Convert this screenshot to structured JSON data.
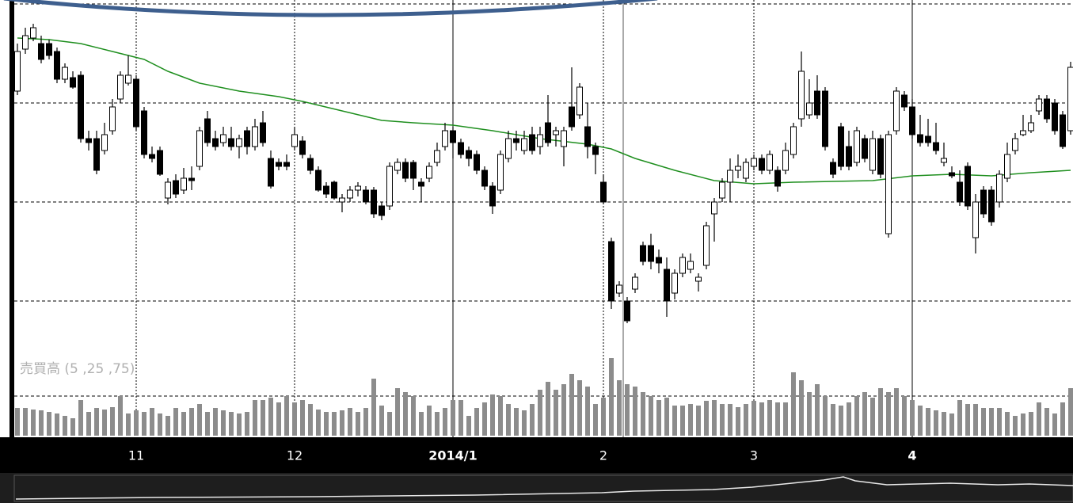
{
  "chart_data": {
    "type": "candlestick",
    "open": [
      390,
      443,
      457,
      450,
      450,
      440,
      405,
      407,
      410,
      330,
      330,
      315,
      340,
      380,
      400,
      405,
      365,
      310,
      315,
      255,
      277,
      265,
      280,
      295,
      355,
      330,
      325,
      330,
      320,
      340,
      320,
      350,
      305,
      300,
      300,
      320,
      327,
      305,
      290,
      270,
      275,
      250,
      255,
      265,
      265,
      265,
      245,
      245,
      290,
      300,
      300,
      275,
      280,
      300,
      320,
      340,
      325,
      315,
      310,
      290,
      270,
      265,
      305,
      330,
      315,
      335,
      320,
      350,
      335,
      320,
      370,
      360,
      345,
      320,
      275,
      200,
      135,
      125,
      140,
      195,
      195,
      180,
      165,
      135,
      160,
      165,
      150,
      170,
      235,
      255,
      275,
      290,
      280,
      295,
      305,
      290,
      290,
      290,
      310,
      355,
      360,
      390,
      390,
      300,
      345,
      320,
      300,
      330,
      290,
      330,
      210,
      340,
      385,
      370,
      335,
      333,
      325,
      300,
      287,
      275,
      295,
      205,
      265,
      265,
      250,
      280,
      315,
      335,
      340,
      365,
      380,
      375,
      360,
      340
    ],
    "high": [
      450,
      470,
      475,
      460,
      455,
      445,
      425,
      415,
      415,
      340,
      340,
      350,
      380,
      415,
      435,
      410,
      370,
      320,
      320,
      280,
      285,
      293,
      295,
      345,
      365,
      340,
      345,
      345,
      335,
      345,
      355,
      365,
      315,
      305,
      310,
      345,
      333,
      310,
      295,
      275,
      277,
      260,
      270,
      275,
      270,
      269,
      250,
      300,
      305,
      305,
      303,
      280,
      300,
      325,
      350,
      345,
      330,
      320,
      315,
      295,
      275,
      315,
      340,
      340,
      340,
      345,
      345,
      385,
      345,
      345,
      420,
      400,
      375,
      325,
      285,
      205,
      150,
      130,
      160,
      200,
      210,
      190,
      180,
      165,
      185,
      185,
      160,
      225,
      255,
      280,
      305,
      310,
      305,
      310,
      310,
      315,
      295,
      325,
      350,
      440,
      405,
      410,
      395,
      305,
      350,
      340,
      345,
      335,
      340,
      335,
      340,
      395,
      390,
      380,
      360,
      355,
      350,
      325,
      295,
      290,
      300,
      260,
      270,
      270,
      290,
      325,
      337,
      360,
      360,
      385,
      385,
      380,
      365,
      427
    ],
    "low": [
      385,
      437,
      453,
      425,
      430,
      400,
      400,
      393,
      325,
      315,
      285,
      310,
      335,
      375,
      397,
      340,
      305,
      300,
      283,
      247,
      255,
      260,
      265,
      290,
      320,
      315,
      320,
      315,
      305,
      310,
      315,
      320,
      267,
      290,
      290,
      315,
      305,
      285,
      263,
      255,
      253,
      237,
      250,
      257,
      247,
      230,
      227,
      240,
      285,
      275,
      265,
      250,
      275,
      295,
      315,
      305,
      305,
      295,
      285,
      265,
      235,
      260,
      300,
      315,
      310,
      310,
      310,
      320,
      320,
      295,
      340,
      355,
      305,
      285,
      247,
      115,
      130,
      97,
      135,
      170,
      165,
      160,
      105,
      127,
      155,
      160,
      137,
      165,
      200,
      250,
      250,
      280,
      275,
      290,
      285,
      285,
      263,
      285,
      305,
      345,
      355,
      355,
      315,
      280,
      290,
      290,
      295,
      300,
      285,
      280,
      205,
      335,
      365,
      330,
      320,
      320,
      310,
      295,
      280,
      245,
      240,
      185,
      230,
      220,
      243,
      275,
      310,
      333,
      337,
      360,
      350,
      335,
      317,
      335
    ],
    "close": [
      440,
      460,
      470,
      430,
      435,
      405,
      420,
      395,
      330,
      325,
      290,
      335,
      370,
      410,
      410,
      345,
      310,
      305,
      285,
      275,
      260,
      280,
      277,
      340,
      325,
      320,
      335,
      320,
      330,
      320,
      345,
      325,
      270,
      295,
      295,
      335,
      310,
      290,
      265,
      260,
      255,
      255,
      265,
      270,
      250,
      235,
      233,
      295,
      300,
      280,
      280,
      270,
      295,
      315,
      340,
      325,
      310,
      305,
      290,
      270,
      245,
      310,
      330,
      325,
      330,
      315,
      335,
      325,
      340,
      340,
      345,
      395,
      320,
      310,
      250,
      125,
      145,
      100,
      155,
      175,
      175,
      173,
      125,
      160,
      180,
      175,
      155,
      220,
      250,
      275,
      290,
      295,
      300,
      305,
      290,
      310,
      270,
      315,
      345,
      415,
      375,
      360,
      320,
      285,
      295,
      295,
      340,
      305,
      330,
      285,
      335,
      390,
      370,
      335,
      325,
      325,
      315,
      305,
      283,
      250,
      245,
      250,
      235,
      225,
      285,
      310,
      330,
      340,
      350,
      380,
      355,
      340,
      320,
      420
    ],
    "up_color": "#ffffff",
    "down_color": "#000000",
    "xlim": [
      -0.4,
      133.3
    ],
    "xticks": [
      {
        "value": 15,
        "label": "11"
      },
      {
        "value": 35,
        "label": "12"
      },
      {
        "value": 55,
        "label": "2014/1",
        "major": true
      },
      {
        "value": 74,
        "label": "2"
      },
      {
        "value": 93,
        "label": "3"
      },
      {
        "value": 113,
        "label": "4",
        "major": true
      }
    ],
    "ylim": [
      65,
      505
    ],
    "yticks": [
      125,
      250,
      375,
      500
    ],
    "grid": true,
    "moving_average": {
      "color": "#1f8f1f",
      "x": [
        0,
        4,
        8,
        12,
        16,
        19,
        23,
        28,
        33,
        36,
        41,
        46,
        50,
        55,
        60,
        66,
        72,
        75,
        78,
        83,
        88,
        93,
        98,
        108,
        113,
        118,
        123,
        128,
        133
      ],
      "values": [
        457,
        455,
        450,
        440,
        430,
        415,
        400,
        390,
        383,
        377,
        365,
        353,
        350,
        347,
        340,
        330,
        323,
        317,
        305,
        290,
        277,
        273,
        275,
        277,
        283,
        285,
        283,
        287,
        290
      ]
    },
    "volume": {
      "label": "売買高 (5 ,25 ,75)",
      "color": "#8c8c8c",
      "values": [
        35,
        35,
        33,
        32,
        30,
        28,
        25,
        22,
        45,
        30,
        35,
        33,
        36,
        50,
        28,
        32,
        30,
        35,
        28,
        25,
        35,
        30,
        35,
        40,
        30,
        35,
        32,
        30,
        28,
        30,
        45,
        45,
        48,
        42,
        50,
        42,
        45,
        40,
        33,
        30,
        30,
        32,
        35,
        30,
        35,
        72,
        38,
        30,
        60,
        55,
        50,
        30,
        38,
        30,
        35,
        45,
        45,
        25,
        35,
        42,
        52,
        50,
        40,
        35,
        32,
        40,
        58,
        68,
        58,
        65,
        78,
        70,
        62,
        40,
        48,
        98,
        70,
        65,
        62,
        55,
        50,
        45,
        48,
        38,
        38,
        40,
        38,
        44,
        45,
        40,
        40,
        36,
        40,
        44,
        42,
        45,
        42,
        42,
        80,
        70,
        55,
        65,
        50,
        40,
        38,
        42,
        50,
        55,
        48,
        60,
        55,
        60,
        50,
        45,
        38,
        35,
        32,
        30,
        28,
        45,
        40,
        40,
        35,
        35,
        35,
        30,
        25,
        28,
        30,
        42,
        35,
        28,
        42,
        60
      ],
      "ylim": [
        0,
        100
      ],
      "yticks": [
        50
      ]
    }
  }
}
